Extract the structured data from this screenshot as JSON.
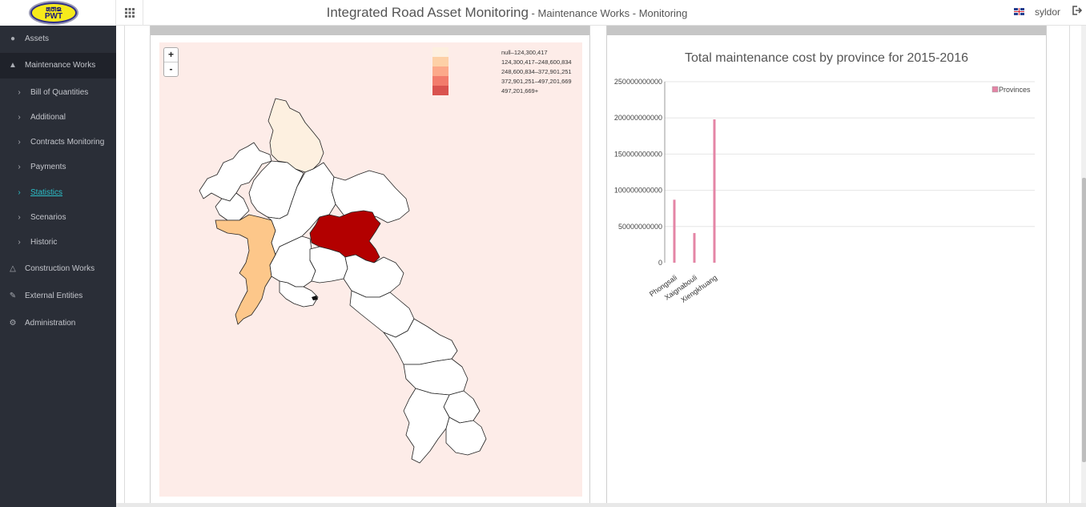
{
  "header": {
    "logo_top": "ທຫຂ",
    "logo_bottom": "PWT",
    "title": "Integrated Road Asset Monitoring",
    "subtitle": " - Maintenance Works - Monitoring",
    "username": "syldor",
    "grid_icon": "grid-icon",
    "logout_icon": "logout-icon"
  },
  "sidebar": {
    "items": [
      {
        "label": "Assets",
        "icon": "map-marker-icon"
      },
      {
        "label": "Maintenance Works",
        "icon": "road-icon"
      },
      {
        "label": "Bill of Quantities",
        "icon": "chevron-right-icon"
      },
      {
        "label": "Additional",
        "icon": "chevron-right-icon"
      },
      {
        "label": "Contracts Monitoring",
        "icon": "chevron-right-icon"
      },
      {
        "label": "Payments",
        "icon": "chevron-right-icon"
      },
      {
        "label": "Statistics",
        "icon": "chevron-right-icon"
      },
      {
        "label": "Scenarios",
        "icon": "chevron-right-icon"
      },
      {
        "label": "Historic",
        "icon": "chevron-right-icon"
      },
      {
        "label": "Construction Works",
        "icon": "warning-icon"
      },
      {
        "label": "External Entities",
        "icon": "wrench-icon"
      },
      {
        "label": "Administration",
        "icon": "cog-icon"
      }
    ]
  },
  "map": {
    "zoom_in": "+",
    "zoom_out": "-",
    "legend": [
      {
        "label": "null–124,300,417",
        "color": "#fdf0e0"
      },
      {
        "label": "124,300,417–248,600,834",
        "color": "#fdd0a6"
      },
      {
        "label": "248,600,834–372,901,251",
        "color": "#fca98a"
      },
      {
        "label": "372,901,251–497,201,669",
        "color": "#f27c6c"
      },
      {
        "label": "497,201,669+",
        "color": "#d9534f"
      }
    ],
    "colors": {
      "background": "#fdece8",
      "default_province": "#ffffff",
      "highlight_dark": "#b30000",
      "highlight_orange": "#fdc78a",
      "highlight_light": "#fdf0e0"
    }
  },
  "chart_data": {
    "type": "bar",
    "title": "Total maintenance cost by province for 2015-2016",
    "categories": [
      "Phongsali",
      "Xaignabouli",
      "Xiengkhuang"
    ],
    "series": [
      {
        "name": "Provinces",
        "values": [
          87000000000,
          41000000000,
          198000000000
        ],
        "color": "#e485a6"
      }
    ],
    "ylim": [
      0,
      250000000000
    ],
    "yticks": [
      "0",
      "50000000000",
      "100000000000",
      "150000000000",
      "200000000000",
      "250000000000"
    ],
    "grid": true,
    "legend_position": "top-right"
  }
}
